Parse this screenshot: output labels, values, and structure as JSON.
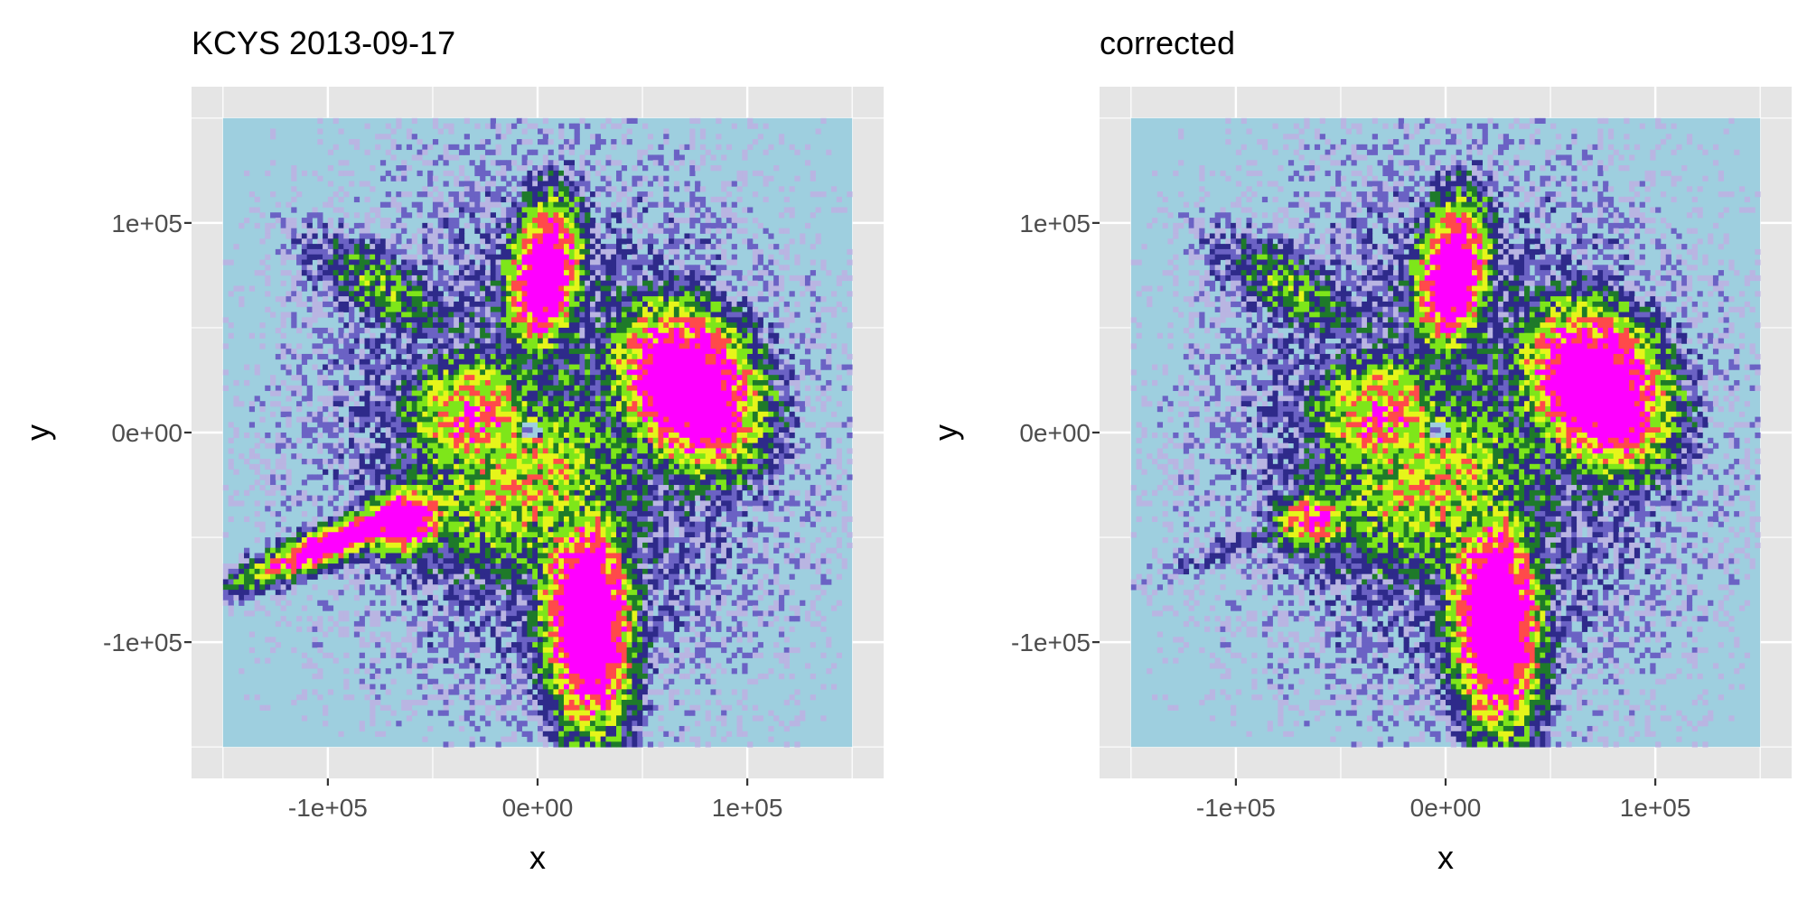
{
  "chart_data": [
    {
      "type": "heatmap",
      "title": "KCYS 2013-09-17",
      "xlabel": "x",
      "ylabel": "y",
      "xlim": [
        -165000,
        165000
      ],
      "ylim": [
        -165000,
        165000
      ],
      "raster_extent": [
        -150000,
        150000
      ],
      "xticks": [
        {
          "value": -100000,
          "label": "-1e+05"
        },
        {
          "value": 0,
          "label": "0e+00"
        },
        {
          "value": 100000,
          "label": "1e+05"
        }
      ],
      "yticks": [
        {
          "value": 100000,
          "label": "1e+05"
        },
        {
          "value": 0,
          "label": "0e+00"
        },
        {
          "value": -100000,
          "label": "-1e+05"
        }
      ],
      "grid": true,
      "corrected": false
    },
    {
      "type": "heatmap",
      "title": "corrected",
      "xlabel": "x",
      "ylabel": "y",
      "xlim": [
        -165000,
        165000
      ],
      "ylim": [
        -165000,
        165000
      ],
      "raster_extent": [
        -150000,
        150000
      ],
      "xticks": [
        {
          "value": -100000,
          "label": "-1e+05"
        },
        {
          "value": 0,
          "label": "0e+00"
        },
        {
          "value": 100000,
          "label": "1e+05"
        }
      ],
      "yticks": [
        {
          "value": 100000,
          "label": "1e+05"
        },
        {
          "value": 0,
          "label": "0e+00"
        },
        {
          "value": -100000,
          "label": "-1e+05"
        }
      ],
      "grid": true,
      "corrected": true
    }
  ],
  "colors": {
    "panel_background": "#e5e5e5",
    "grid": "#ffffff",
    "raster_background": "#9ecfdf",
    "intensity_scale": [
      "#9ecfdf",
      "#b9b5e2",
      "#6b62c4",
      "#2e2a8a",
      "#1e7a2a",
      "#7ee61a",
      "#e6f51a",
      "#ff4a4a",
      "#ff00ff"
    ]
  }
}
